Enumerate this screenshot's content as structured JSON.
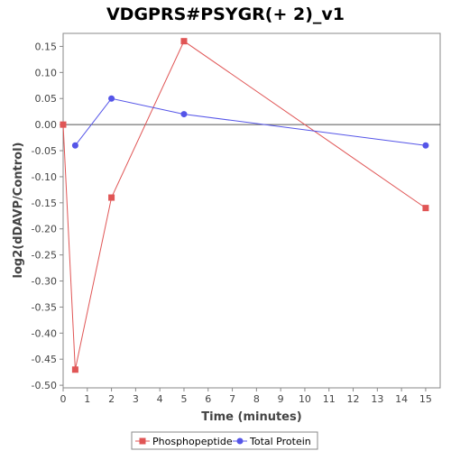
{
  "chart_data": {
    "type": "line",
    "title": "VDGPRS#PSYGR(+ 2)_v1",
    "xlabel": "Time (minutes)",
    "ylabel": "log2(dDAVP/Control)",
    "xlim": [
      0,
      15.6
    ],
    "ylim": [
      -0.505,
      0.175
    ],
    "x_ticks": [
      0,
      1,
      2,
      3,
      4,
      5,
      6,
      7,
      8,
      9,
      10,
      11,
      12,
      13,
      14,
      15
    ],
    "y_ticks": [
      0.15,
      0.1,
      0.05,
      0.0,
      -0.05,
      -0.1,
      -0.15,
      -0.2,
      -0.25,
      -0.3,
      -0.35,
      -0.4,
      -0.45,
      -0.5
    ],
    "y_tick_labels": [
      "0.15",
      "0.10",
      "0.05",
      "0.00",
      "-0.05",
      "-0.10",
      "-0.15",
      "-0.20",
      "-0.25",
      "-0.30",
      "-0.35",
      "-0.40",
      "-0.45",
      "-0.50"
    ],
    "zero_line": true,
    "grid": false,
    "legend_position": "bottom-center",
    "series": [
      {
        "name": "Phosphopeptide",
        "color": "#e05555",
        "marker": "square",
        "x": [
          0,
          0.5,
          2,
          5,
          15
        ],
        "y": [
          0.0,
          -0.47,
          -0.14,
          0.16,
          -0.16
        ]
      },
      {
        "name": "Total Protein",
        "color": "#5555e8",
        "marker": "circle",
        "x": [
          0.5,
          2,
          5,
          15
        ],
        "y": [
          -0.04,
          0.05,
          0.02,
          -0.04
        ]
      }
    ]
  }
}
